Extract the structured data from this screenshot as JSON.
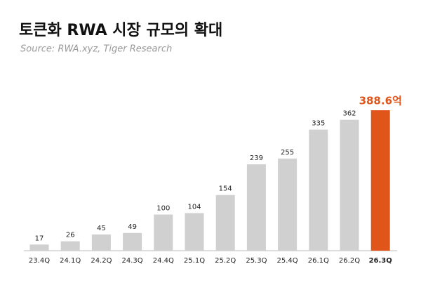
{
  "chart_data": {
    "type": "bar",
    "title": "토큰화 RWA 시장 규모의 확대",
    "subtitle": "Source: RWA.xyz, Tiger Research",
    "categories": [
      "23.4Q",
      "24.1Q",
      "24.2Q",
      "24.3Q",
      "24.4Q",
      "25.1Q",
      "25.2Q",
      "25.3Q",
      "25.4Q",
      "26.1Q",
      "26.2Q",
      "26.3Q"
    ],
    "values": [
      17,
      26,
      45,
      49,
      100,
      104,
      154,
      239,
      255,
      335,
      362,
      388.6
    ],
    "value_labels": [
      "17",
      "26",
      "45",
      "49",
      "100",
      "104",
      "154",
      "239",
      "255",
      "335",
      "362",
      "388.6억"
    ],
    "colors": [
      "#d0d0d0",
      "#d0d0d0",
      "#d0d0d0",
      "#d0d0d0",
      "#d0d0d0",
      "#d0d0d0",
      "#d0d0d0",
      "#d0d0d0",
      "#d0d0d0",
      "#d0d0d0",
      "#d0d0d0",
      "#e0561a"
    ]
  }
}
